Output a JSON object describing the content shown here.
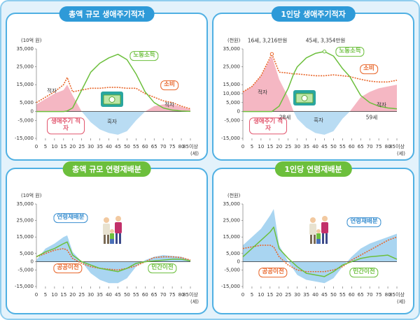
{
  "chart_data": [
    {
      "type": "line",
      "title": "총액 규모 생애주기적자",
      "title_color": "#2e9ad8",
      "y_unit": "(10억 원)",
      "x_unit": "(세)",
      "x": [
        0,
        5,
        10,
        15,
        17,
        20,
        25,
        30,
        35,
        40,
        45,
        50,
        55,
        60,
        65,
        70,
        75,
        80,
        85
      ],
      "xlim": [
        0,
        85
      ],
      "xticks": [
        0,
        5,
        10,
        15,
        20,
        25,
        30,
        35,
        40,
        45,
        50,
        55,
        60,
        65,
        70,
        75,
        80,
        {
          "value": 85,
          "label": "85이상"
        }
      ],
      "ylim": [
        -15000,
        35000
      ],
      "yticks": [
        {
          "value": 35000,
          "label": "35,000"
        },
        {
          "value": 25000,
          "label": "25,000"
        },
        {
          "value": 15000,
          "label": "15,000"
        },
        {
          "value": 5000,
          "label": "5,000"
        },
        0,
        {
          "value": -5000,
          "label": "-5,000"
        },
        {
          "value": -15000,
          "label": "-15,000"
        }
      ],
      "annotations": [
        "적자",
        "적자",
        "흑자"
      ],
      "series": [
        {
          "name": "생애주기 적자",
          "kind": "area",
          "color": "#f5b7c3",
          "negative_color": "#b9dcf3",
          "values": [
            4000,
            7000,
            10000,
            12000,
            15000,
            9000,
            0,
            -6000,
            -10000,
            -12000,
            -13000,
            -11000,
            -5000,
            0,
            3000,
            4000,
            4000,
            2700,
            1200
          ]
        },
        {
          "name": "소비",
          "kind": "line",
          "dash": true,
          "color": "#e8662a",
          "values": [
            5000,
            8000,
            11000,
            15000,
            19000,
            11000,
            12000,
            13000,
            13000,
            13500,
            13500,
            13000,
            13000,
            10000,
            8000,
            6000,
            5000,
            3000,
            1500
          ]
        },
        {
          "name": "노동소득",
          "kind": "line",
          "color": "#6cbf3c",
          "values": [
            0,
            0,
            0,
            0,
            300,
            2000,
            12000,
            22000,
            27000,
            30000,
            32000,
            29000,
            21000,
            11000,
            5000,
            2000,
            800,
            300,
            100
          ]
        }
      ]
    },
    {
      "type": "line",
      "title": "1인당 생애주기적자",
      "title_color": "#2e9ad8",
      "y_unit": "(천원)",
      "x_unit": "(세)",
      "x": [
        0,
        5,
        10,
        16,
        20,
        25,
        28,
        30,
        35,
        40,
        45,
        50,
        55,
        59,
        65,
        70,
        75,
        80,
        85
      ],
      "xlim": [
        0,
        85
      ],
      "xticks": [
        0,
        5,
        10,
        15,
        20,
        25,
        30,
        35,
        40,
        45,
        50,
        55,
        60,
        65,
        70,
        75,
        80,
        {
          "value": 85,
          "label": "85이상"
        }
      ],
      "ylim": [
        -15000,
        35000
      ],
      "yticks": [
        {
          "value": 35000,
          "label": "35,000"
        },
        {
          "value": 25000,
          "label": "25,000"
        },
        {
          "value": 15000,
          "label": "15,000"
        },
        {
          "value": 10000,
          "label": "10,000"
        },
        {
          "value": 5000,
          "label": "5,000"
        },
        0,
        {
          "value": -5000,
          "label": "-5,000"
        },
        {
          "value": -15000,
          "label": "-15,000"
        }
      ],
      "annotations": [
        "16세, 3,216만원",
        "45세, 3,354만원",
        "28세",
        "59세",
        "적자",
        "적자",
        "흑자"
      ],
      "series": [
        {
          "name": "생애주기 적자",
          "kind": "area",
          "color": "#f5b7c3",
          "negative_color": "#b9dcf3",
          "values": [
            11000,
            14000,
            20000,
            31000,
            18000,
            8000,
            0,
            -4000,
            -9000,
            -12000,
            -13000,
            -11000,
            -4000,
            0,
            8000,
            11000,
            13000,
            14000,
            15000
          ]
        },
        {
          "name": "소비",
          "kind": "line",
          "dash": true,
          "color": "#e8662a",
          "values": [
            11000,
            14000,
            20000,
            32160,
            22000,
            21500,
            21000,
            21000,
            20500,
            20000,
            20000,
            20500,
            20000,
            19500,
            18000,
            17000,
            16500,
            16500,
            17500
          ]
        },
        {
          "name": "노동소득",
          "kind": "line",
          "color": "#6cbf3c",
          "values": [
            0,
            0,
            0,
            0,
            3000,
            13000,
            21000,
            25000,
            30000,
            32500,
            33540,
            31000,
            24000,
            19500,
            9000,
            5000,
            3000,
            2000,
            1500
          ]
        }
      ]
    },
    {
      "type": "line",
      "title": "총액 규모 연령재배분",
      "title_color": "#6cbf3c",
      "y_unit": "(10억 원)",
      "x_unit": "(세)",
      "x": [
        0,
        5,
        10,
        15,
        17,
        20,
        25,
        30,
        35,
        40,
        45,
        50,
        55,
        60,
        65,
        70,
        75,
        80,
        85
      ],
      "xlim": [
        0,
        85
      ],
      "xticks": [
        0,
        5,
        10,
        15,
        20,
        25,
        30,
        35,
        40,
        45,
        50,
        55,
        60,
        65,
        70,
        75,
        80,
        {
          "value": 85,
          "label": "85이상"
        }
      ],
      "ylim": [
        -15000,
        35000
      ],
      "yticks": [
        {
          "value": 35000,
          "label": "35,000"
        },
        {
          "value": 25000,
          "label": "25,000"
        },
        {
          "value": 15000,
          "label": "15,000"
        },
        {
          "value": 5000,
          "label": "5,000"
        },
        0,
        {
          "value": -5000,
          "label": "-5,000"
        },
        {
          "value": -15000,
          "label": "-15,000"
        }
      ],
      "series": [
        {
          "name": "연령재배분",
          "kind": "area",
          "color": "#a9d5f1",
          "negative_color": "#a9d5f1",
          "values": [
            1000,
            8000,
            11000,
            15000,
            16000,
            6000,
            0,
            -7000,
            -11000,
            -13000,
            -13000,
            -10000,
            -3000,
            1000,
            3000,
            4000,
            3500,
            3000,
            1000
          ]
        },
        {
          "name": "공공이전",
          "kind": "line",
          "dash": true,
          "color": "#e8662a",
          "values": [
            3000,
            5000,
            7000,
            8000,
            7000,
            2000,
            -1000,
            -3000,
            -4000,
            -4500,
            -5000,
            -4000,
            -2500,
            0,
            2500,
            3000,
            3000,
            2500,
            1000
          ]
        },
        {
          "name": "민간이전",
          "kind": "line",
          "color": "#6cbf3c",
          "values": [
            3000,
            6000,
            8000,
            11000,
            12000,
            4000,
            0,
            -2000,
            -4000,
            -5000,
            -6000,
            -4000,
            -1000,
            0,
            500,
            1000,
            1500,
            1500,
            500
          ]
        }
      ]
    },
    {
      "type": "line",
      "title": "1인당 연령재배분",
      "title_color": "#6cbf3c",
      "y_unit": "(천원)",
      "x_unit": "(세)",
      "x": [
        0,
        5,
        10,
        15,
        17,
        20,
        25,
        30,
        35,
        40,
        45,
        50,
        55,
        60,
        65,
        70,
        75,
        80,
        85
      ],
      "xlim": [
        0,
        85
      ],
      "xticks": [
        0,
        5,
        10,
        15,
        20,
        25,
        30,
        35,
        40,
        45,
        50,
        55,
        60,
        65,
        70,
        75,
        80,
        {
          "value": 85,
          "label": "85이상"
        }
      ],
      "ylim": [
        -15000,
        35000
      ],
      "yticks": [
        {
          "value": 35000,
          "label": "35,000"
        },
        {
          "value": 25000,
          "label": "25,000"
        },
        {
          "value": 15000,
          "label": "15,000"
        },
        {
          "value": 5000,
          "label": "5,000"
        },
        0,
        {
          "value": -5000,
          "label": "-5,000"
        },
        {
          "value": -15000,
          "label": "-15,000"
        }
      ],
      "series": [
        {
          "name": "연령재배분",
          "kind": "area",
          "color": "#a9d5f1",
          "negative_color": "#a9d5f1",
          "values": [
            10000,
            15000,
            20000,
            28000,
            32000,
            10000,
            0,
            -8000,
            -11000,
            -12000,
            -13000,
            -10000,
            -3000,
            3000,
            8000,
            11000,
            13000,
            15000,
            17000
          ]
        },
        {
          "name": "공공이전",
          "kind": "line",
          "dash": true,
          "color": "#e8662a",
          "values": [
            8000,
            9000,
            10000,
            10000,
            9000,
            3000,
            -2000,
            -5000,
            -6000,
            -6000,
            -6000,
            -5000,
            -3000,
            1000,
            4000,
            7000,
            10000,
            13000,
            15000
          ]
        },
        {
          "name": "민간이전",
          "kind": "line",
          "color": "#6cbf3c",
          "values": [
            3000,
            8000,
            13000,
            18000,
            21000,
            8000,
            2000,
            -3000,
            -7000,
            -8000,
            -9000,
            -6000,
            -2000,
            0,
            2000,
            3000,
            3500,
            4000,
            1500
          ]
        }
      ]
    }
  ]
}
